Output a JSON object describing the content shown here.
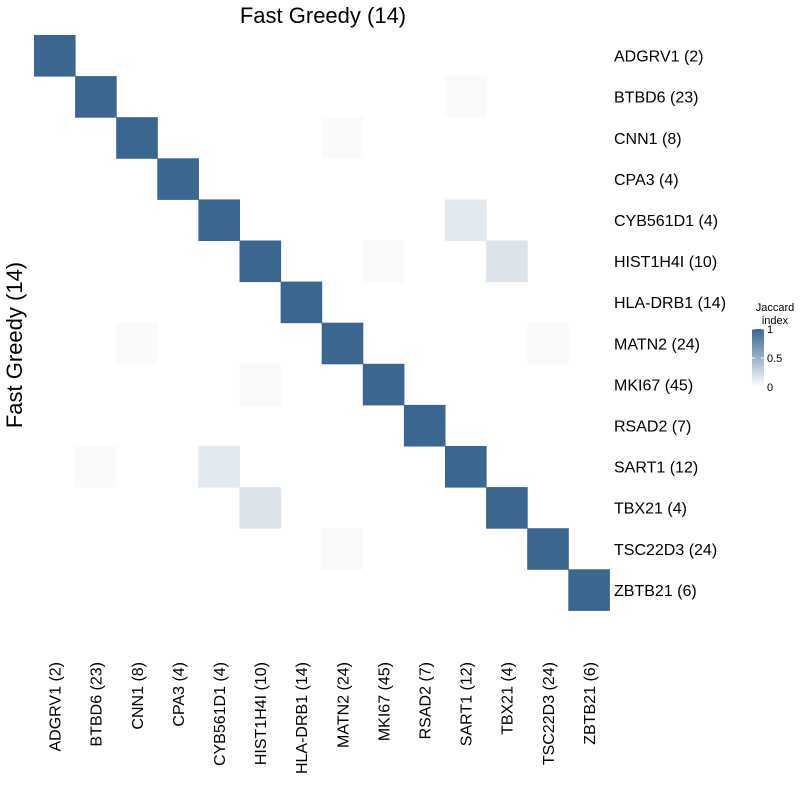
{
  "chart_data": {
    "type": "heatmap",
    "title": "Fast Greedy (14)",
    "ylabel": "Fast Greedy (14)",
    "labels": [
      "ADGRV1 (2)",
      "BTBD6 (23)",
      "CNN1 (8)",
      "CPA3 (4)",
      "CYB561D1 (4)",
      "HIST1H4I (10)",
      "HLA-DRB1 (14)",
      "MATN2 (24)",
      "MKI67 (45)",
      "RSAD2 (7)",
      "SART1 (12)",
      "TBX21 (4)",
      "TSC22D3 (24)",
      "ZBTB21 (6)"
    ],
    "values": [
      [
        1,
        0,
        0,
        0,
        0,
        0,
        0,
        0,
        0,
        0,
        0,
        0,
        0,
        0
      ],
      [
        0,
        1,
        0,
        0,
        0,
        0,
        0,
        0,
        0,
        0,
        0.03,
        0,
        0,
        0
      ],
      [
        0,
        0,
        1,
        0,
        0,
        0,
        0,
        0.03,
        0,
        0,
        0,
        0,
        0,
        0
      ],
      [
        0,
        0,
        0,
        1,
        0,
        0,
        0,
        0,
        0,
        0,
        0,
        0,
        0,
        0
      ],
      [
        0,
        0,
        0,
        0,
        1,
        0,
        0,
        0,
        0,
        0,
        0.14,
        0,
        0,
        0
      ],
      [
        0,
        0,
        0,
        0,
        0,
        1,
        0,
        0,
        0.04,
        0,
        0,
        0.18,
        0,
        0
      ],
      [
        0,
        0,
        0,
        0,
        0,
        0,
        1,
        0,
        0,
        0,
        0,
        0,
        0,
        0
      ],
      [
        0,
        0,
        0.03,
        0,
        0,
        0,
        0,
        1,
        0,
        0,
        0,
        0,
        0.04,
        0
      ],
      [
        0,
        0,
        0,
        0,
        0,
        0.04,
        0,
        0,
        1,
        0,
        0,
        0,
        0,
        0
      ],
      [
        0,
        0,
        0,
        0,
        0,
        0,
        0,
        0,
        0,
        1,
        0,
        0,
        0,
        0
      ],
      [
        0,
        0.03,
        0,
        0,
        0.14,
        0,
        0,
        0,
        0,
        0,
        1,
        0,
        0,
        0
      ],
      [
        0,
        0,
        0,
        0,
        0,
        0.18,
        0,
        0,
        0,
        0,
        0,
        1,
        0,
        0
      ],
      [
        0,
        0,
        0,
        0,
        0,
        0,
        0,
        0.04,
        0,
        0,
        0,
        0,
        1,
        0
      ],
      [
        0,
        0,
        0,
        0,
        0,
        0,
        0,
        0,
        0,
        0,
        0,
        0,
        0,
        1
      ]
    ],
    "legend": {
      "title_line1": "Jaccard",
      "title_line2": "index",
      "ticks": [
        "1",
        "0.5",
        "0"
      ],
      "range": [
        0,
        1
      ],
      "placement": "right"
    },
    "colors": {
      "low": "#ffffff",
      "high": "#3a6690"
    }
  }
}
